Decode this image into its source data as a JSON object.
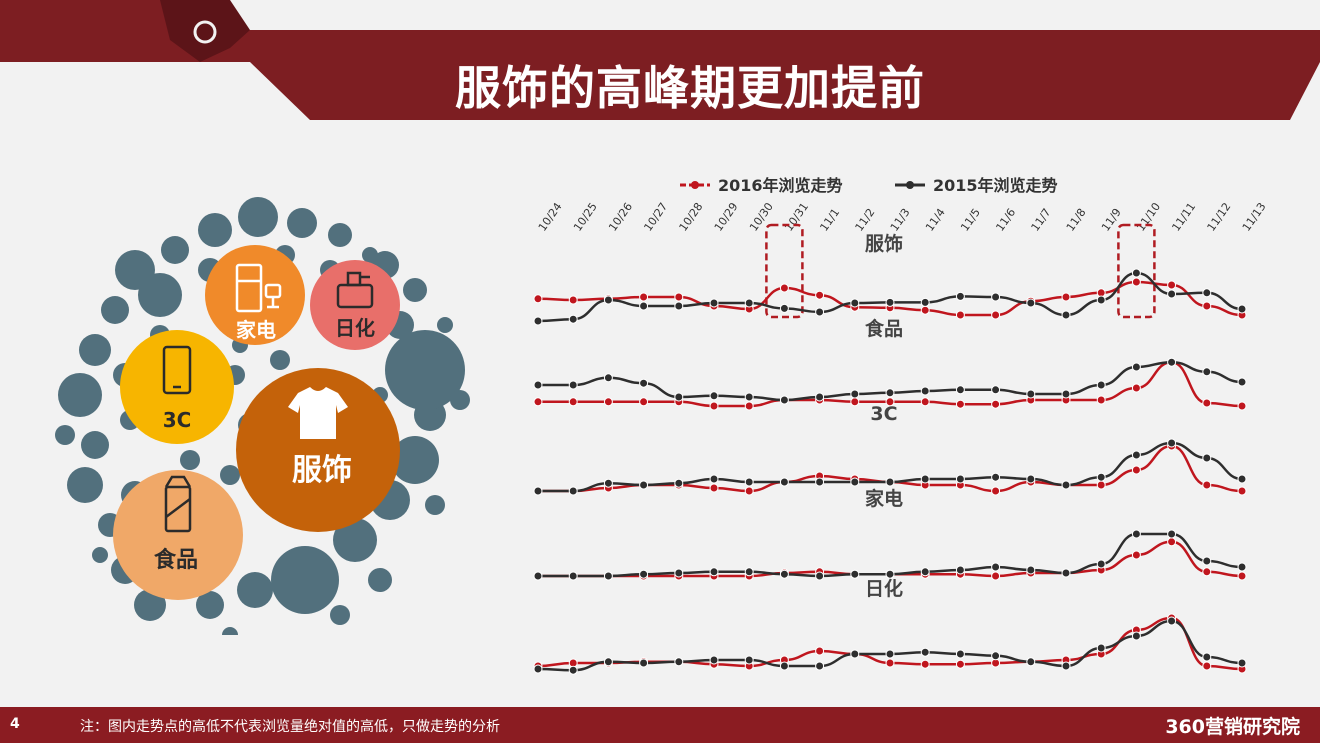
{
  "header": {
    "title": "服饰的高峰期更加提前"
  },
  "colors": {
    "banner": "#7d1e22",
    "series_2016": "#c0161e",
    "series_2015": "#2e2e2e",
    "bubble_gray": "#52707d",
    "bubble_apparel": "#c4620a",
    "bubble_appliance": "#f08a2a",
    "bubble_daily": "#e86f6a",
    "bubble_3c": "#f7b500",
    "bubble_food": "#f0a868"
  },
  "bubbles": [
    {
      "label": "服饰",
      "icon": "tshirt-icon",
      "color": "#c4620a"
    },
    {
      "label": "家电",
      "icon": "fridge-icon",
      "color": "#f08a2a"
    },
    {
      "label": "日化",
      "icon": "bottle-icon",
      "color": "#e86f6a"
    },
    {
      "label": "3C",
      "icon": "phone-icon",
      "color": "#f7b500"
    },
    {
      "label": "食品",
      "icon": "milk-carton-icon",
      "color": "#f0a868"
    }
  ],
  "chart_data": {
    "type": "line",
    "x": [
      "10/24",
      "10/25",
      "10/26",
      "10/27",
      "10/28",
      "10/29",
      "10/30",
      "10/31",
      "11/1",
      "11/2",
      "11/3",
      "11/4",
      "11/5",
      "11/6",
      "11/7",
      "11/8",
      "11/9",
      "11/10",
      "11/11",
      "11/12",
      "11/13"
    ],
    "legend": [
      "2016年浏览走势",
      "2015年浏览走势"
    ],
    "legend_position": "top",
    "grid": false,
    "panels": [
      {
        "title": "服饰",
        "series": [
          {
            "name": "2016年浏览走势",
            "values": [
              52,
              50,
              52,
              55,
              55,
              40,
              35,
              70,
              58,
              38,
              37,
              33,
              25,
              25,
              48,
              55,
              62,
              80,
              75,
              40,
              25
            ]
          },
          {
            "name": "2015年浏览走势",
            "values": [
              15,
              18,
              50,
              40,
              40,
              45,
              45,
              36,
              30,
              45,
              46,
              46,
              56,
              55,
              45,
              25,
              50,
              95,
              60,
              62,
              35
            ]
          }
        ],
        "highlight": [
          "10/31",
          "11/10"
        ]
      },
      {
        "title": "食品",
        "series": [
          {
            "name": "2016年浏览走势",
            "values": [
              22,
              22,
              22,
              22,
              22,
              15,
              15,
              25,
              25,
              22,
              22,
              22,
              18,
              18,
              25,
              25,
              25,
              45,
              88,
              20,
              15
            ]
          },
          {
            "name": "2015年浏览走势",
            "values": [
              50,
              50,
              62,
              53,
              30,
              32,
              30,
              25,
              30,
              35,
              37,
              40,
              42,
              42,
              35,
              35,
              50,
              80,
              88,
              72,
              55
            ]
          }
        ]
      },
      {
        "title": "3C",
        "series": [
          {
            "name": "2016年浏览走势",
            "values": [
              15,
              15,
              20,
              25,
              25,
              20,
              15,
              30,
              40,
              35,
              30,
              25,
              25,
              15,
              30,
              25,
              25,
              50,
              90,
              25,
              15
            ]
          },
          {
            "name": "2015年浏览走势",
            "values": [
              15,
              15,
              28,
              25,
              28,
              35,
              30,
              30,
              30,
              30,
              30,
              35,
              35,
              38,
              35,
              25,
              38,
              75,
              95,
              70,
              35
            ]
          }
        ]
      },
      {
        "title": "家电",
        "series": [
          {
            "name": "2016年浏览走势",
            "values": [
              15,
              15,
              15,
              15,
              15,
              15,
              15,
              20,
              22,
              18,
              18,
              18,
              18,
              15,
              20,
              20,
              25,
              50,
              72,
              22,
              15
            ]
          },
          {
            "name": "2015年浏览走势",
            "values": [
              15,
              15,
              15,
              18,
              20,
              22,
              22,
              18,
              15,
              18,
              18,
              22,
              25,
              30,
              25,
              20,
              35,
              85,
              85,
              40,
              30
            ]
          }
        ]
      },
      {
        "title": "日化",
        "series": [
          {
            "name": "2016年浏览走势",
            "values": [
              15,
              20,
              20,
              22,
              22,
              18,
              15,
              25,
              40,
              35,
              20,
              18,
              18,
              20,
              22,
              25,
              35,
              75,
              95,
              15,
              10
            ]
          },
          {
            "name": "2015年浏览走势",
            "values": [
              10,
              8,
              22,
              20,
              22,
              25,
              25,
              15,
              15,
              35,
              35,
              38,
              35,
              32,
              22,
              15,
              45,
              65,
              90,
              30,
              20
            ]
          }
        ]
      }
    ]
  },
  "footer": {
    "page_number": "4",
    "note": "注：图内走势点的高低不代表浏览量绝对值的高低，只做走势的分析",
    "brand": "360营销研究院"
  }
}
